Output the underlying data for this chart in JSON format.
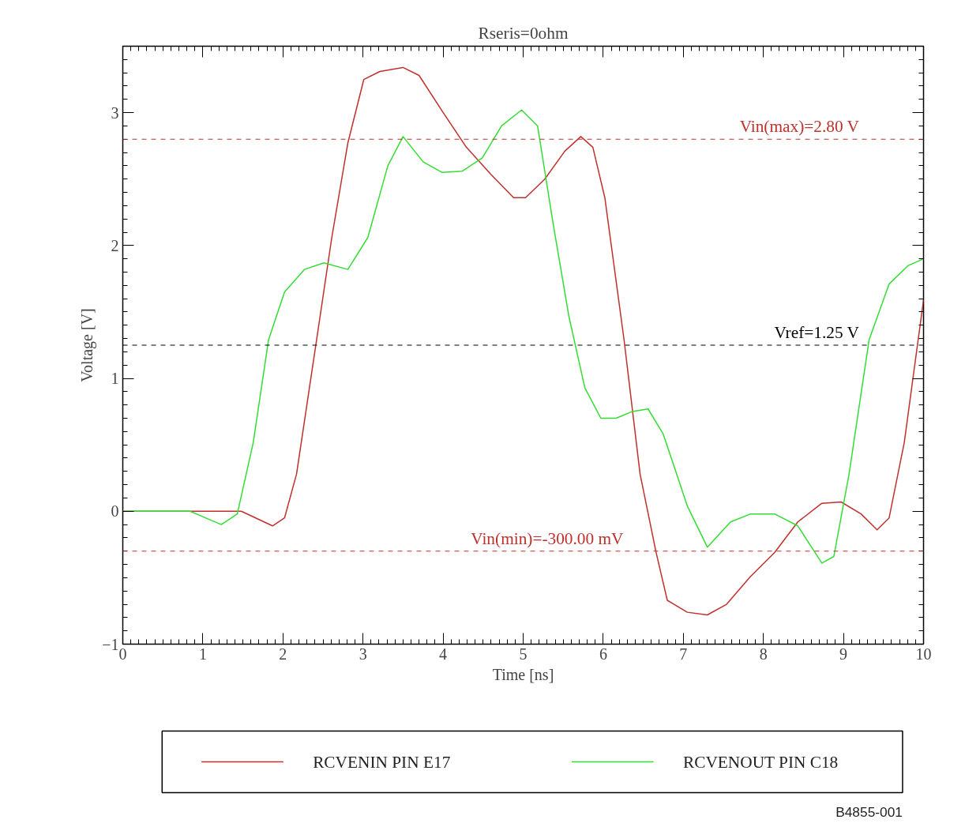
{
  "chart_data": {
    "type": "line",
    "title": "Rseris=0ohm",
    "xlabel": "Time [ns]",
    "ylabel": "Voltage [V]",
    "xlim": [
      0,
      10
    ],
    "ylim": [
      -1,
      3.5
    ],
    "xticks": [
      0,
      1,
      2,
      3,
      4,
      5,
      6,
      7,
      8,
      9,
      10
    ],
    "yticks": [
      -1,
      0,
      1,
      2,
      3
    ],
    "grid": false,
    "legend": "bottom",
    "line_style": "solid",
    "series": [
      {
        "name": "RCVENIN PIN E17",
        "color": "#c0302c",
        "x": [
          0,
          0.84,
          1.48,
          1.87,
          2.02,
          2.17,
          2.42,
          2.61,
          2.81,
          3.01,
          3.21,
          3.5,
          3.7,
          3.99,
          4.29,
          4.59,
          4.88,
          5.03,
          5.27,
          5.52,
          5.72,
          5.87,
          6.02,
          6.26,
          6.46,
          6.66,
          6.8,
          7.05,
          7.3,
          7.54,
          7.84,
          8.14,
          8.43,
          8.73,
          8.97,
          9.22,
          9.42,
          9.57,
          9.76,
          10
        ],
        "values": [
          0,
          0,
          0,
          -0.11,
          -0.05,
          0.28,
          1.29,
          2.06,
          2.77,
          3.25,
          3.31,
          3.34,
          3.28,
          3.01,
          2.74,
          2.54,
          2.36,
          2.36,
          2.5,
          2.71,
          2.82,
          2.74,
          2.36,
          1.29,
          0.28,
          -0.31,
          -0.67,
          -0.76,
          -0.78,
          -0.7,
          -0.49,
          -0.31,
          -0.08,
          0.06,
          0.07,
          -0.02,
          -0.14,
          -0.05,
          0.52,
          1.59
        ]
      },
      {
        "name": "RCVENOUT PIN C18",
        "color": "#33dd33",
        "x": [
          0,
          0.84,
          1.23,
          1.43,
          1.63,
          1.82,
          2.02,
          2.27,
          2.51,
          2.81,
          3.06,
          3.31,
          3.5,
          3.75,
          3.99,
          4.24,
          4.49,
          4.73,
          4.98,
          5.18,
          5.37,
          5.57,
          5.77,
          5.97,
          6.16,
          6.36,
          6.56,
          6.75,
          7.05,
          7.3,
          7.59,
          7.84,
          8.14,
          8.43,
          8.73,
          8.88,
          9.07,
          9.32,
          9.57,
          9.81,
          10
        ],
        "values": [
          0,
          0,
          -0.1,
          -0.02,
          0.52,
          1.29,
          1.65,
          1.82,
          1.87,
          1.82,
          2.06,
          2.6,
          2.82,
          2.63,
          2.55,
          2.56,
          2.66,
          2.9,
          3.02,
          2.9,
          2.18,
          1.47,
          0.93,
          0.7,
          0.7,
          0.75,
          0.77,
          0.58,
          0.04,
          -0.27,
          -0.08,
          -0.02,
          -0.02,
          -0.11,
          -0.39,
          -0.34,
          0.28,
          1.29,
          1.71,
          1.85,
          1.9
        ]
      }
    ],
    "ref_lines": [
      {
        "axis": "y",
        "value": 2.8,
        "label": "Vin(max)=2.80 V",
        "color": "#c0302c",
        "line_style": "dashed"
      },
      {
        "axis": "y",
        "value": 1.25,
        "label": "Vref=1.25 V",
        "color": "#000000",
        "line_style": "dashed"
      },
      {
        "axis": "y",
        "value": -0.3,
        "label": "Vin(min)=-300.00 mV",
        "color": "#c0302c",
        "line_style": "dashed"
      }
    ],
    "annotations": [
      "B4855-001"
    ]
  }
}
